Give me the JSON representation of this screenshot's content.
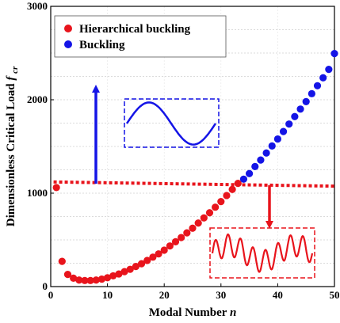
{
  "chart_data": {
    "type": "scatter",
    "xlabel": "Modal Number",
    "xlabel_var": "n",
    "ylabel": "Dimensionless Critical Load",
    "ylabel_var": "f",
    "ylabel_sub": "cr",
    "xlim": [
      0,
      50
    ],
    "ylim": [
      0,
      3000
    ],
    "xticks": [
      "0",
      "10",
      "20",
      "30",
      "40",
      "50"
    ],
    "yticks": [
      "0",
      "1000",
      "2000",
      "3000"
    ],
    "grid": true,
    "legend_position": "top-left",
    "threshold": 1090,
    "colors": {
      "hierarchical": "#e8141c",
      "buckling": "#1414e6",
      "insets": "#1a1ae6"
    },
    "insets": [
      {
        "kind": "simple-sine",
        "color": "#1414e6",
        "arrow": "up"
      },
      {
        "kind": "hierarchical-wave",
        "color": "#e8141c",
        "arrow": "down"
      }
    ],
    "series": [
      {
        "name": "Hierarchical buckling",
        "color": "#e8141c",
        "x": [
          1,
          2,
          3,
          4,
          5,
          6,
          7,
          8,
          9,
          10,
          11,
          12,
          13,
          14,
          15,
          16,
          17,
          18,
          19,
          20,
          21,
          22,
          23,
          24,
          25,
          26,
          27,
          28,
          29,
          30,
          31,
          32,
          33
        ],
        "y": [
          1060,
          270,
          130,
          90,
          70,
          65,
          65,
          70,
          80,
          95,
          115,
          135,
          160,
          185,
          215,
          245,
          280,
          315,
          350,
          390,
          435,
          480,
          525,
          575,
          625,
          680,
          735,
          790,
          850,
          910,
          975,
          1040,
          1105
        ]
      },
      {
        "name": "Buckling",
        "color": "#1414e6",
        "x": [
          34,
          35,
          36,
          37,
          38,
          39,
          40,
          41,
          42,
          43,
          44,
          45,
          46,
          47,
          48,
          49,
          50
        ],
        "y": [
          1150,
          1210,
          1285,
          1355,
          1430,
          1505,
          1580,
          1660,
          1740,
          1820,
          1900,
          1980,
          2065,
          2150,
          2235,
          2325,
          2495
        ]
      }
    ]
  }
}
